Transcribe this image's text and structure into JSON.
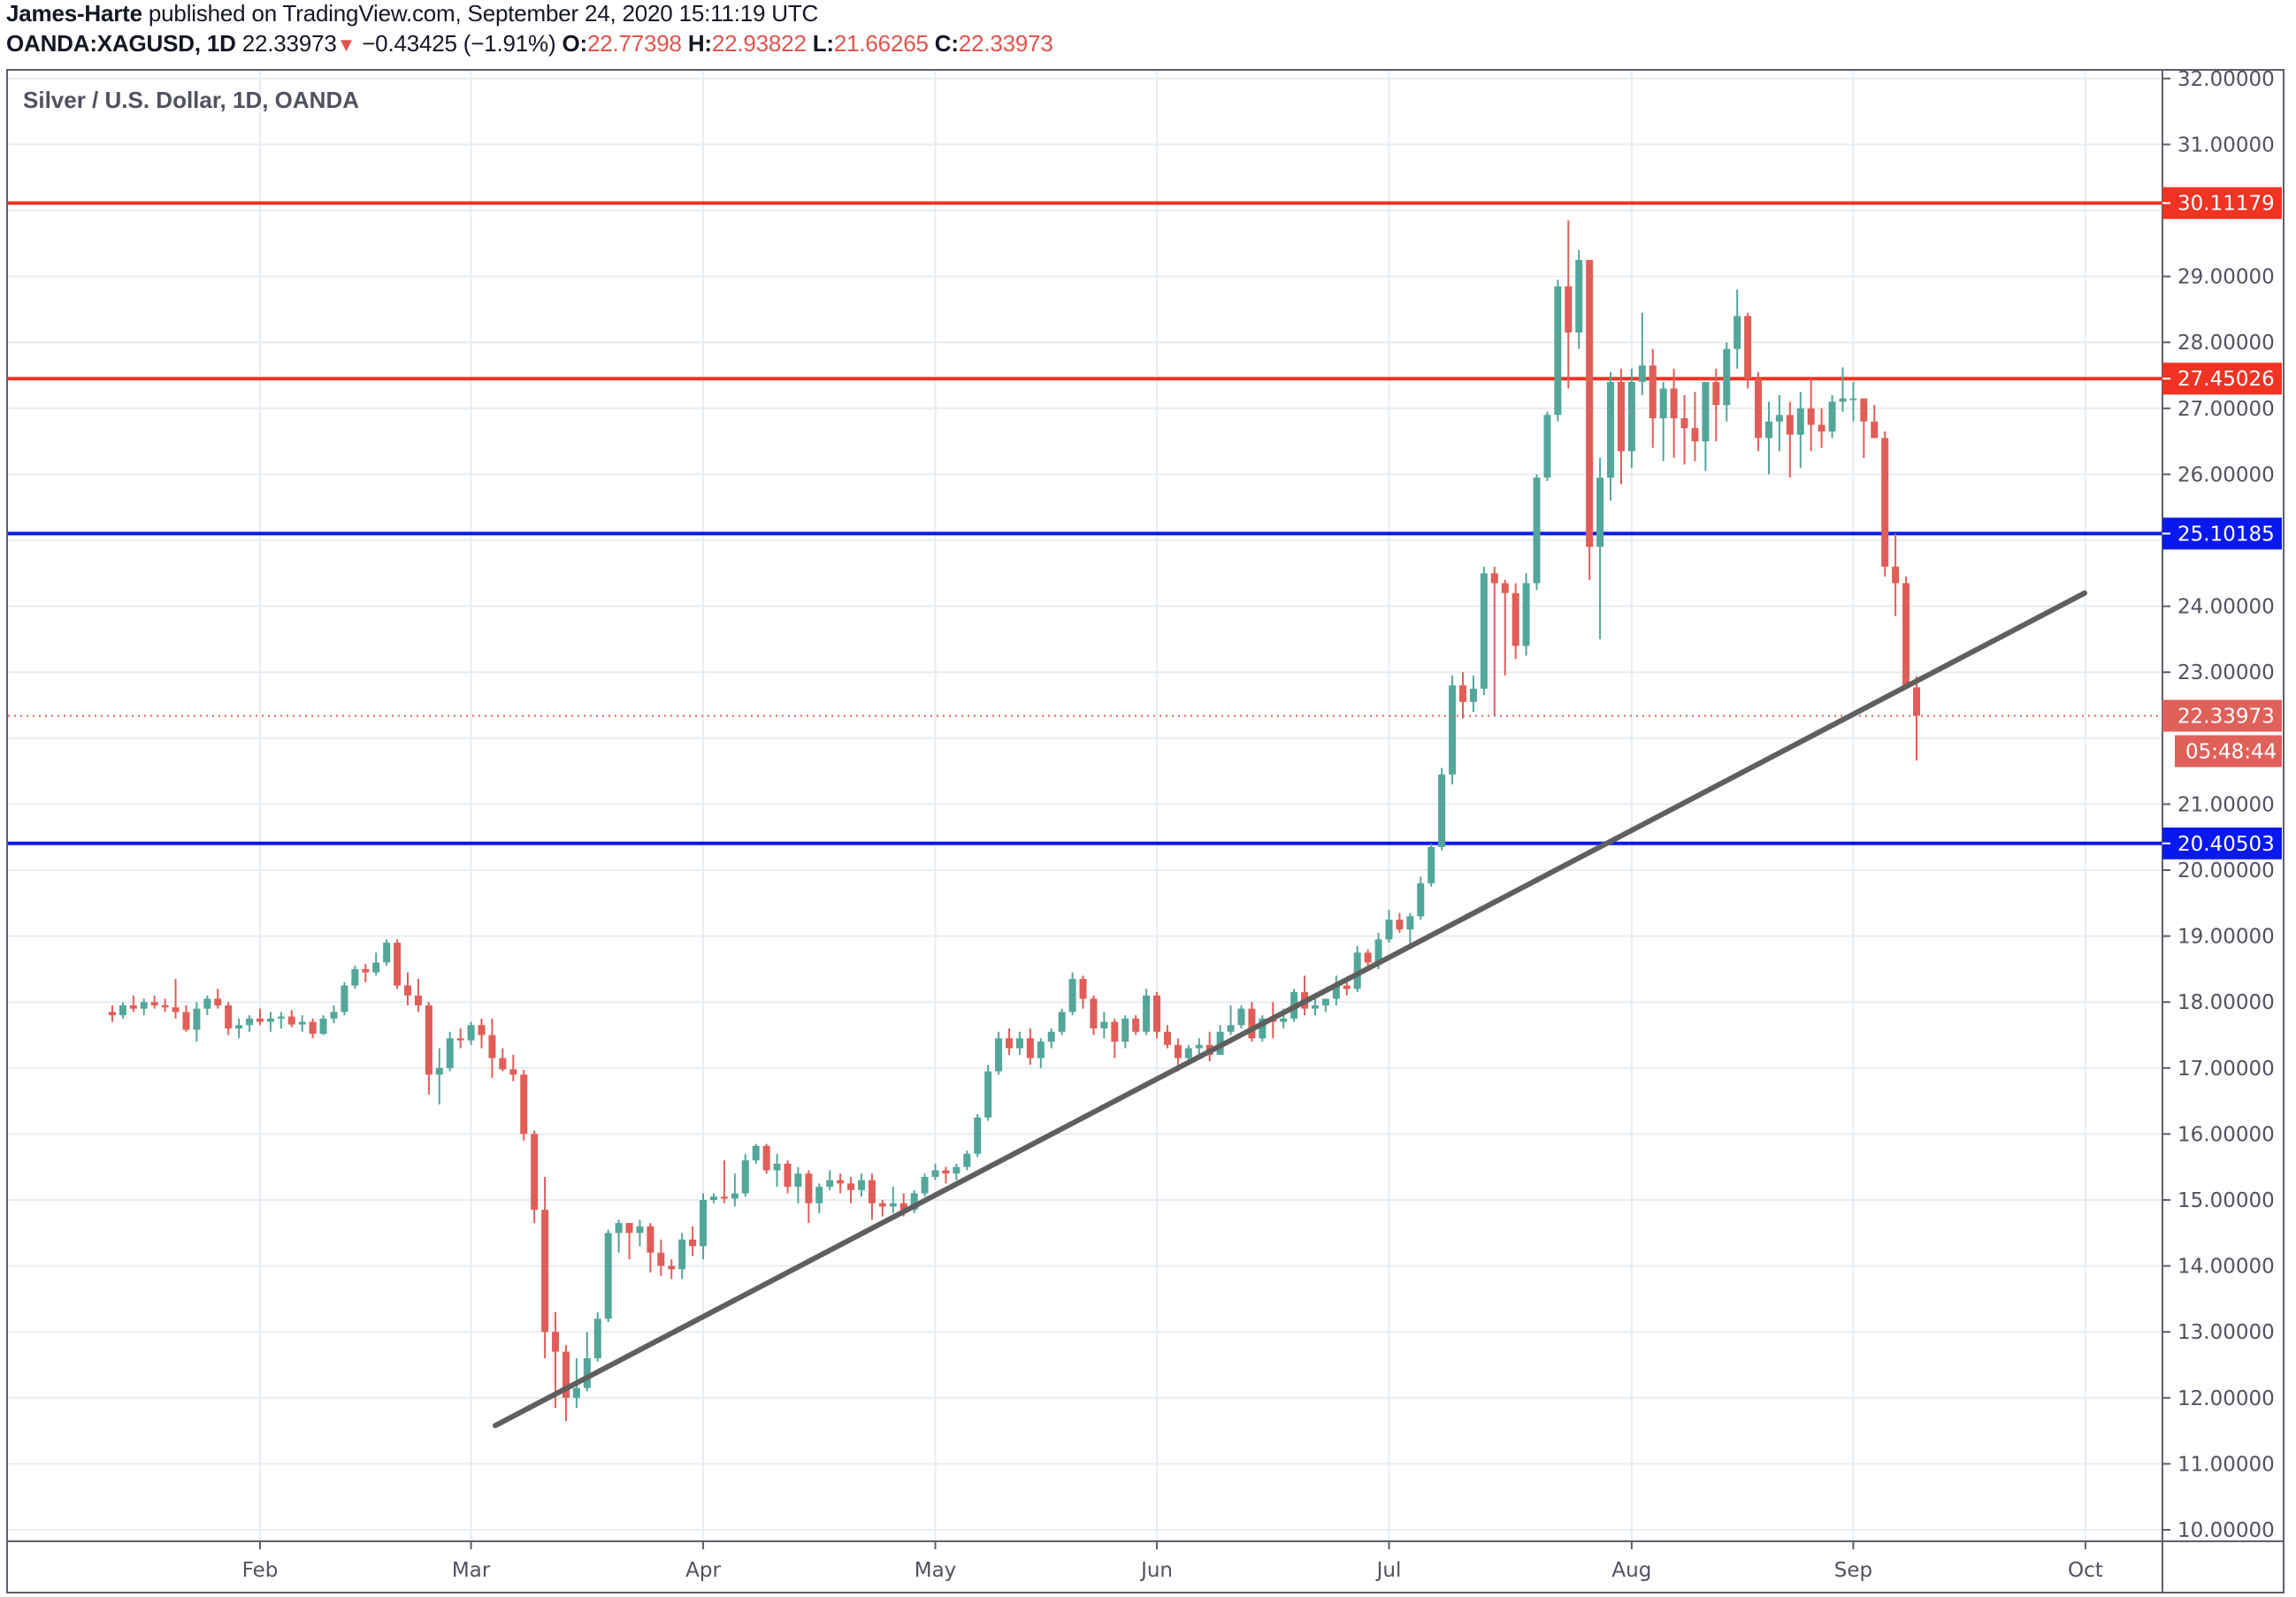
{
  "header": {
    "author": "James-Harte",
    "published_text": " published on TradingView.com, September 24, 2020 15:11:19 UTC",
    "symbol": "OANDA:XAGUSD, 1D",
    "last_price": "22.33973",
    "change_arrow": "▼",
    "change": "−0.43425 (−1.91%)",
    "o_label": "O:",
    "o_value": "22.77398",
    "h_label": "H:",
    "h_value": "22.93822",
    "l_label": "L:",
    "l_value": "21.66265",
    "c_label": "C:",
    "c_value": "22.33973"
  },
  "legend": {
    "title": "Silver / U.S. Dollar, 1D, OANDA"
  },
  "colors": {
    "up": "#53a69a",
    "down": "#e05e57",
    "resistance": "#f03323",
    "support": "#0a18f0",
    "trendline": "#5f5f5f",
    "grid": "#e6edf3",
    "axis_text": "#50535e",
    "last_price_tag": "#e0605a"
  },
  "chart_data": {
    "type": "candlestick",
    "title": "Silver / U.S. Dollar, 1D, OANDA",
    "symbol": "OANDA:XAGUSD",
    "interval": "1D",
    "xlabel": "",
    "ylabel": "",
    "ylim": [
      9.8,
      32.05
    ],
    "y_ticks": [
      "32.00000",
      "31.00000",
      "29.00000",
      "28.00000",
      "27.00000",
      "26.00000",
      "24.00000",
      "23.00000",
      "21.00000",
      "20.00000",
      "19.00000",
      "18.00000",
      "17.00000",
      "16.00000",
      "15.00000",
      "14.00000",
      "13.00000",
      "12.00000",
      "11.00000",
      "10.00000"
    ],
    "y_tick_values": [
      32,
      31,
      29,
      28,
      27,
      26,
      24,
      23,
      21,
      20,
      19,
      18,
      17,
      16,
      15,
      14,
      13,
      12,
      11,
      10
    ],
    "x_ticks": [
      {
        "label": "Feb",
        "date": "2020-02-03"
      },
      {
        "label": "Mar",
        "date": "2020-03-02"
      },
      {
        "label": "Apr",
        "date": "2020-04-01"
      },
      {
        "label": "May",
        "date": "2020-05-01"
      },
      {
        "label": "Jun",
        "date": "2020-06-01"
      },
      {
        "label": "Jul",
        "date": "2020-07-01"
      },
      {
        "label": "Aug",
        "date": "2020-08-03"
      },
      {
        "label": "Sep",
        "date": "2020-09-01"
      },
      {
        "label": "Oct",
        "date": "2020-10-01"
      }
    ],
    "grid": true,
    "start_date": "2020-01-14",
    "ohlc": [
      [
        17.85,
        17.95,
        17.7,
        17.8
      ],
      [
        17.8,
        18.0,
        17.75,
        17.95
      ],
      [
        17.95,
        18.1,
        17.85,
        17.9
      ],
      [
        17.9,
        18.05,
        17.8,
        18.0
      ],
      [
        18.0,
        18.1,
        17.9,
        17.95
      ],
      [
        17.95,
        18.05,
        17.85,
        17.92
      ],
      [
        17.92,
        18.35,
        17.75,
        17.85
      ],
      [
        17.85,
        17.95,
        17.55,
        17.58
      ],
      [
        17.58,
        18.0,
        17.4,
        17.9
      ],
      [
        17.9,
        18.1,
        17.8,
        18.05
      ],
      [
        18.05,
        18.2,
        17.9,
        17.95
      ],
      [
        17.95,
        18.0,
        17.5,
        17.6
      ],
      [
        17.6,
        17.75,
        17.45,
        17.65
      ],
      [
        17.65,
        17.8,
        17.55,
        17.75
      ],
      [
        17.75,
        17.9,
        17.65,
        17.7
      ],
      [
        17.7,
        17.85,
        17.55,
        17.75
      ],
      [
        17.75,
        17.85,
        17.6,
        17.78
      ],
      [
        17.78,
        17.88,
        17.62,
        17.66
      ],
      [
        17.66,
        17.8,
        17.55,
        17.7
      ],
      [
        17.7,
        17.75,
        17.45,
        17.52
      ],
      [
        17.52,
        17.8,
        17.5,
        17.75
      ],
      [
        17.75,
        17.95,
        17.68,
        17.85
      ],
      [
        17.85,
        18.3,
        17.8,
        18.25
      ],
      [
        18.25,
        18.55,
        18.2,
        18.5
      ],
      [
        18.5,
        18.58,
        18.3,
        18.45
      ],
      [
        18.45,
        18.75,
        18.4,
        18.6
      ],
      [
        18.6,
        18.95,
        18.55,
        18.9
      ],
      [
        18.9,
        18.95,
        18.2,
        18.25
      ],
      [
        18.25,
        18.45,
        17.95,
        18.1
      ],
      [
        18.1,
        18.35,
        17.85,
        17.95
      ],
      [
        17.95,
        18.0,
        16.6,
        16.9
      ],
      [
        16.9,
        17.3,
        16.45,
        17.0
      ],
      [
        17.0,
        17.55,
        16.95,
        17.45
      ],
      [
        17.45,
        17.6,
        17.3,
        17.42
      ],
      [
        17.42,
        17.7,
        17.35,
        17.65
      ],
      [
        17.65,
        17.75,
        17.3,
        17.5
      ],
      [
        17.5,
        17.75,
        16.85,
        17.15
      ],
      [
        17.15,
        17.3,
        16.95,
        16.98
      ],
      [
        16.98,
        17.2,
        16.8,
        16.9
      ],
      [
        16.9,
        16.97,
        15.9,
        16.0
      ],
      [
        16.0,
        16.05,
        14.65,
        14.85
      ],
      [
        14.85,
        15.35,
        12.6,
        13.0
      ],
      [
        13.0,
        13.3,
        11.85,
        12.7
      ],
      [
        12.7,
        12.8,
        11.65,
        12.0
      ],
      [
        12.0,
        12.6,
        11.85,
        12.15
      ],
      [
        12.15,
        13.0,
        12.1,
        12.6
      ],
      [
        12.6,
        13.3,
        12.55,
        13.2
      ],
      [
        13.2,
        14.55,
        13.15,
        14.5
      ],
      [
        14.5,
        14.7,
        14.2,
        14.65
      ],
      [
        14.65,
        14.65,
        14.1,
        14.5
      ],
      [
        14.5,
        14.7,
        14.3,
        14.6
      ],
      [
        14.6,
        14.65,
        13.9,
        14.2
      ],
      [
        14.2,
        14.4,
        13.85,
        14.0
      ],
      [
        14.0,
        14.1,
        13.8,
        13.95
      ],
      [
        13.95,
        14.5,
        13.8,
        14.4
      ],
      [
        14.4,
        14.6,
        14.15,
        14.3
      ],
      [
        14.3,
        15.1,
        14.1,
        15.0
      ],
      [
        15.0,
        15.1,
        14.95,
        15.05
      ],
      [
        15.05,
        15.6,
        14.95,
        15.02
      ],
      [
        15.02,
        15.4,
        14.9,
        15.1
      ],
      [
        15.1,
        15.7,
        15.05,
        15.6
      ],
      [
        15.6,
        15.85,
        15.55,
        15.82
      ],
      [
        15.82,
        15.85,
        15.4,
        15.45
      ],
      [
        15.45,
        15.7,
        15.2,
        15.55
      ],
      [
        15.55,
        15.6,
        15.1,
        15.2
      ],
      [
        15.2,
        15.5,
        14.95,
        15.4
      ],
      [
        15.4,
        15.45,
        14.65,
        14.95
      ],
      [
        14.95,
        15.25,
        14.8,
        15.2
      ],
      [
        15.2,
        15.45,
        15.15,
        15.3
      ],
      [
        15.3,
        15.4,
        15.1,
        15.25
      ],
      [
        15.25,
        15.35,
        14.95,
        15.15
      ],
      [
        15.15,
        15.4,
        15.05,
        15.3
      ],
      [
        15.3,
        15.4,
        14.7,
        14.95
      ],
      [
        14.95,
        15.0,
        14.75,
        14.9
      ],
      [
        14.9,
        15.2,
        14.8,
        14.95
      ],
      [
        14.95,
        15.1,
        14.75,
        14.85
      ],
      [
        14.85,
        15.15,
        14.8,
        15.1
      ],
      [
        15.1,
        15.4,
        15.05,
        15.35
      ],
      [
        15.35,
        15.55,
        15.3,
        15.45
      ],
      [
        15.45,
        15.5,
        15.25,
        15.4
      ],
      [
        15.4,
        15.55,
        15.3,
        15.5
      ],
      [
        15.5,
        15.75,
        15.45,
        15.7
      ],
      [
        15.7,
        16.3,
        15.65,
        16.25
      ],
      [
        16.25,
        17.05,
        16.2,
        16.95
      ],
      [
        16.95,
        17.55,
        16.9,
        17.45
      ],
      [
        17.45,
        17.6,
        17.2,
        17.3
      ],
      [
        17.3,
        17.55,
        17.2,
        17.45
      ],
      [
        17.45,
        17.6,
        17.05,
        17.15
      ],
      [
        17.15,
        17.45,
        17.0,
        17.4
      ],
      [
        17.4,
        17.6,
        17.3,
        17.55
      ],
      [
        17.55,
        17.9,
        17.5,
        17.85
      ],
      [
        17.85,
        18.45,
        17.8,
        18.35
      ],
      [
        18.35,
        18.4,
        17.9,
        18.05
      ],
      [
        18.05,
        18.1,
        17.5,
        17.6
      ],
      [
        17.6,
        17.85,
        17.45,
        17.7
      ],
      [
        17.7,
        17.75,
        17.15,
        17.4
      ],
      [
        17.4,
        17.8,
        17.3,
        17.75
      ],
      [
        17.75,
        17.8,
        17.5,
        17.55
      ],
      [
        17.55,
        18.2,
        17.5,
        18.1
      ],
      [
        18.1,
        18.15,
        17.45,
        17.55
      ],
      [
        17.55,
        17.65,
        17.3,
        17.35
      ],
      [
        17.35,
        17.45,
        16.95,
        17.15
      ],
      [
        17.15,
        17.35,
        17.1,
        17.3
      ],
      [
        17.3,
        17.45,
        17.15,
        17.35
      ],
      [
        17.35,
        17.55,
        17.1,
        17.2
      ],
      [
        17.2,
        17.65,
        17.2,
        17.55
      ],
      [
        17.55,
        17.95,
        17.5,
        17.65
      ],
      [
        17.65,
        17.95,
        17.6,
        17.9
      ],
      [
        17.9,
        18.0,
        17.4,
        17.45
      ],
      [
        17.45,
        17.8,
        17.4,
        17.75
      ],
      [
        17.75,
        18.0,
        17.45,
        17.7
      ],
      [
        17.7,
        17.9,
        17.6,
        17.75
      ],
      [
        17.75,
        18.2,
        17.7,
        18.15
      ],
      [
        18.15,
        18.4,
        17.8,
        17.9
      ],
      [
        17.9,
        18.05,
        17.8,
        17.95
      ],
      [
        17.95,
        18.05,
        17.85,
        18.05
      ],
      [
        18.05,
        18.4,
        17.95,
        18.25
      ],
      [
        18.25,
        18.3,
        18.1,
        18.2
      ],
      [
        18.2,
        18.85,
        18.15,
        18.75
      ],
      [
        18.75,
        18.8,
        18.55,
        18.6
      ],
      [
        18.6,
        19.05,
        18.5,
        18.95
      ],
      [
        18.95,
        19.4,
        18.9,
        19.25
      ],
      [
        19.25,
        19.35,
        19.05,
        19.1
      ],
      [
        19.1,
        19.35,
        18.85,
        19.3
      ],
      [
        19.3,
        19.9,
        19.25,
        19.8
      ],
      [
        19.8,
        20.4,
        19.75,
        20.35
      ],
      [
        20.35,
        21.55,
        20.3,
        21.45
      ],
      [
        21.45,
        22.95,
        21.3,
        22.8
      ],
      [
        22.8,
        23.0,
        22.3,
        22.55
      ],
      [
        22.55,
        22.95,
        22.4,
        22.75
      ],
      [
        22.75,
        24.6,
        22.65,
        24.5
      ],
      [
        24.5,
        24.6,
        22.35,
        24.35
      ],
      [
        24.35,
        24.4,
        22.95,
        24.2
      ],
      [
        24.2,
        24.35,
        23.2,
        23.4
      ],
      [
        23.4,
        24.5,
        23.25,
        24.35
      ],
      [
        24.35,
        26.0,
        24.25,
        25.95
      ],
      [
        25.95,
        26.95,
        25.9,
        26.9
      ],
      [
        26.9,
        28.95,
        26.8,
        28.85
      ],
      [
        28.85,
        29.85,
        27.3,
        28.15
      ],
      [
        28.15,
        29.4,
        27.9,
        29.25
      ],
      [
        29.25,
        29.1,
        24.4,
        24.9
      ],
      [
        24.9,
        26.25,
        23.5,
        25.95
      ],
      [
        25.95,
        27.55,
        25.6,
        27.4
      ],
      [
        27.4,
        27.6,
        25.85,
        26.35
      ],
      [
        26.35,
        27.6,
        26.1,
        27.4
      ],
      [
        27.4,
        28.45,
        27.2,
        27.65
      ],
      [
        27.65,
        27.9,
        26.4,
        26.85
      ],
      [
        26.85,
        27.4,
        26.2,
        27.3
      ],
      [
        27.3,
        27.6,
        26.25,
        26.85
      ],
      [
        26.85,
        27.2,
        26.15,
        26.7
      ],
      [
        26.7,
        27.25,
        26.2,
        26.5
      ],
      [
        26.5,
        27.4,
        26.05,
        27.4
      ],
      [
        27.4,
        27.6,
        26.5,
        27.05
      ],
      [
        27.05,
        28.0,
        26.8,
        27.9
      ],
      [
        27.9,
        28.8,
        27.6,
        28.4
      ],
      [
        28.4,
        28.45,
        27.3,
        27.45
      ],
      [
        27.45,
        27.55,
        26.35,
        26.55
      ],
      [
        26.55,
        27.1,
        26.0,
        26.8
      ],
      [
        26.8,
        27.2,
        26.35,
        26.9
      ],
      [
        26.9,
        27.1,
        25.95,
        26.6
      ],
      [
        26.6,
        27.25,
        26.1,
        27.0
      ],
      [
        27.0,
        27.45,
        26.35,
        26.75
      ],
      [
        26.75,
        27.0,
        26.4,
        26.65
      ],
      [
        26.65,
        27.2,
        26.55,
        27.1
      ],
      [
        27.1,
        27.62,
        26.95,
        27.15
      ],
      [
        27.15,
        27.4,
        26.8,
        27.15
      ],
      [
        27.15,
        27.1,
        26.25,
        26.8
      ],
      [
        26.8,
        27.05,
        26.6,
        26.55
      ],
      [
        26.55,
        26.65,
        24.45,
        24.6
      ],
      [
        24.6,
        25.1,
        23.85,
        24.35
      ],
      [
        24.35,
        24.45,
        22.75,
        22.77
      ],
      [
        22.77,
        22.94,
        21.66,
        22.34
      ]
    ],
    "horizontal_levels": [
      {
        "price": 30.11179,
        "label": "30.11179",
        "color": "#f03323",
        "type": "resistance"
      },
      {
        "price": 27.45026,
        "label": "27.45026",
        "color": "#f03323",
        "type": "resistance"
      },
      {
        "price": 25.10185,
        "label": "25.10185",
        "color": "#0a18f0",
        "type": "support"
      },
      {
        "price": 20.40503,
        "label": "20.40503",
        "color": "#0a18f0",
        "type": "support"
      }
    ],
    "trendline": {
      "start": {
        "date": "2020-03-18",
        "price": 11.58
      },
      "end": {
        "date": "2020-10-16",
        "price": 24.2
      }
    },
    "last_price": {
      "price": 22.33973,
      "label": "22.33973",
      "countdown": "05:48:44"
    }
  }
}
